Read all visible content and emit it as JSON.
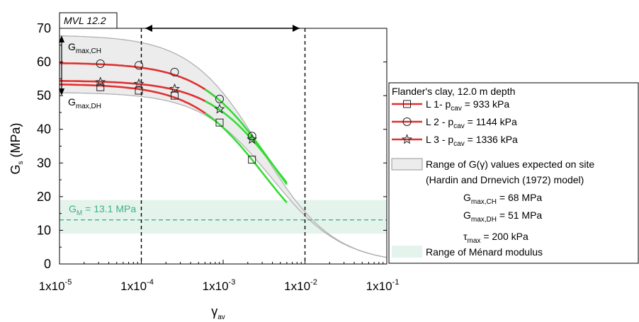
{
  "chart_data": {
    "type": "line",
    "x_scale": "log",
    "xlim": [
      1e-05,
      0.1
    ],
    "ylim": [
      0,
      70
    ],
    "grid": false,
    "legend_position": "right",
    "tag_label": "MVL 12.2",
    "xlabel": {
      "main": "γ",
      "sub": "av"
    },
    "ylabel": {
      "main": "G",
      "sub": "s",
      "rest": " (MPa)"
    },
    "y_ticks": [
      "0",
      "10",
      "20",
      "30",
      "40",
      "50",
      "60",
      "70"
    ],
    "x_ticks": [
      {
        "base": "1x10",
        "exp": "-5"
      },
      {
        "base": "1x10",
        "exp": "-4"
      },
      {
        "base": "1x10",
        "exp": "-3"
      },
      {
        "base": "1x10",
        "exp": "-2"
      },
      {
        "base": "1x10",
        "exp": "-1"
      }
    ],
    "annotations": {
      "gmax_ch": {
        "main": "G",
        "sub": "max,CH"
      },
      "gmax_dh": {
        "main": "G",
        "sub": "max,DH"
      },
      "gm_label": "G",
      "gm_sub": "M",
      "gm_value": " = 13.1 MPa"
    },
    "vertical_lines_x": [
      0.0001,
      0.01
    ],
    "menard_modulus_band": {
      "y_from": 9,
      "y_to": 19,
      "color": "#e4f3ec"
    },
    "gm_line": {
      "y": 13.1,
      "color": "#3fb37f"
    },
    "range_band": {
      "color": "#ececec",
      "edge_color": "#b0b0b0",
      "gmax_ch": 68,
      "gmax_dh": 51,
      "tau_max_kpa": 200
    },
    "series": [
      {
        "name": "L 1- p_cav = 933 kPa",
        "marker": "square",
        "color": "#e03030",
        "fit_color": "#33dd33",
        "gmax": 53.5,
        "markers": [
          {
            "x": 3.16e-05,
            "y": 52.5
          },
          {
            "x": 9.33e-05,
            "y": 51.5
          },
          {
            "x": 0.000255,
            "y": 50
          },
          {
            "x": 0.000905,
            "y": 42
          },
          {
            "x": 0.00225,
            "y": 31
          }
        ]
      },
      {
        "name": "L 2 - p_cav = 1144 kPa",
        "marker": "circle",
        "color": "#e03030",
        "fit_color": "#33dd33",
        "gmax": 59.8,
        "markers": [
          {
            "x": 3.16e-05,
            "y": 59.5
          },
          {
            "x": 9.33e-05,
            "y": 59
          },
          {
            "x": 0.000255,
            "y": 57
          },
          {
            "x": 0.000905,
            "y": 49
          },
          {
            "x": 0.00225,
            "y": 38
          }
        ]
      },
      {
        "name": "L 3 - p_cav = 1336 kPa",
        "marker": "star",
        "color": "#e03030",
        "fit_color": "#33dd33",
        "gmax": 54.5,
        "markers": [
          {
            "x": 3.16e-05,
            "y": 54
          },
          {
            "x": 9.33e-05,
            "y": 53.5
          },
          {
            "x": 0.000255,
            "y": 52
          },
          {
            "x": 0.000905,
            "y": 46
          },
          {
            "x": 0.00225,
            "y": 37
          }
        ]
      }
    ],
    "legend": {
      "title": "Flander's clay, 12.0 m depth",
      "entries": [
        {
          "pre": "L 1- p",
          "sub": "cav",
          "post": " = 933 kPa"
        },
        {
          "pre": "L 2 - p",
          "sub": "cav",
          "post": " = 1144 kPa"
        },
        {
          "pre": "L 3 - p",
          "sub": "cav",
          "post": " = 1336 kPa"
        }
      ],
      "range_line1": "Range of G(γ) values expected on site",
      "range_line2": "(Hardin and Drnevich (1972) model)",
      "gch": {
        "main": "G",
        "sub": "max,CH",
        "post": " = 68 MPa"
      },
      "gdh": {
        "main": "G",
        "sub": "max,DH",
        "post": " = 51 MPa"
      },
      "tau": {
        "main": "τ",
        "sub": "max",
        "post": " = 200 kPa"
      },
      "menard": "Range of Ménard modulus"
    }
  }
}
